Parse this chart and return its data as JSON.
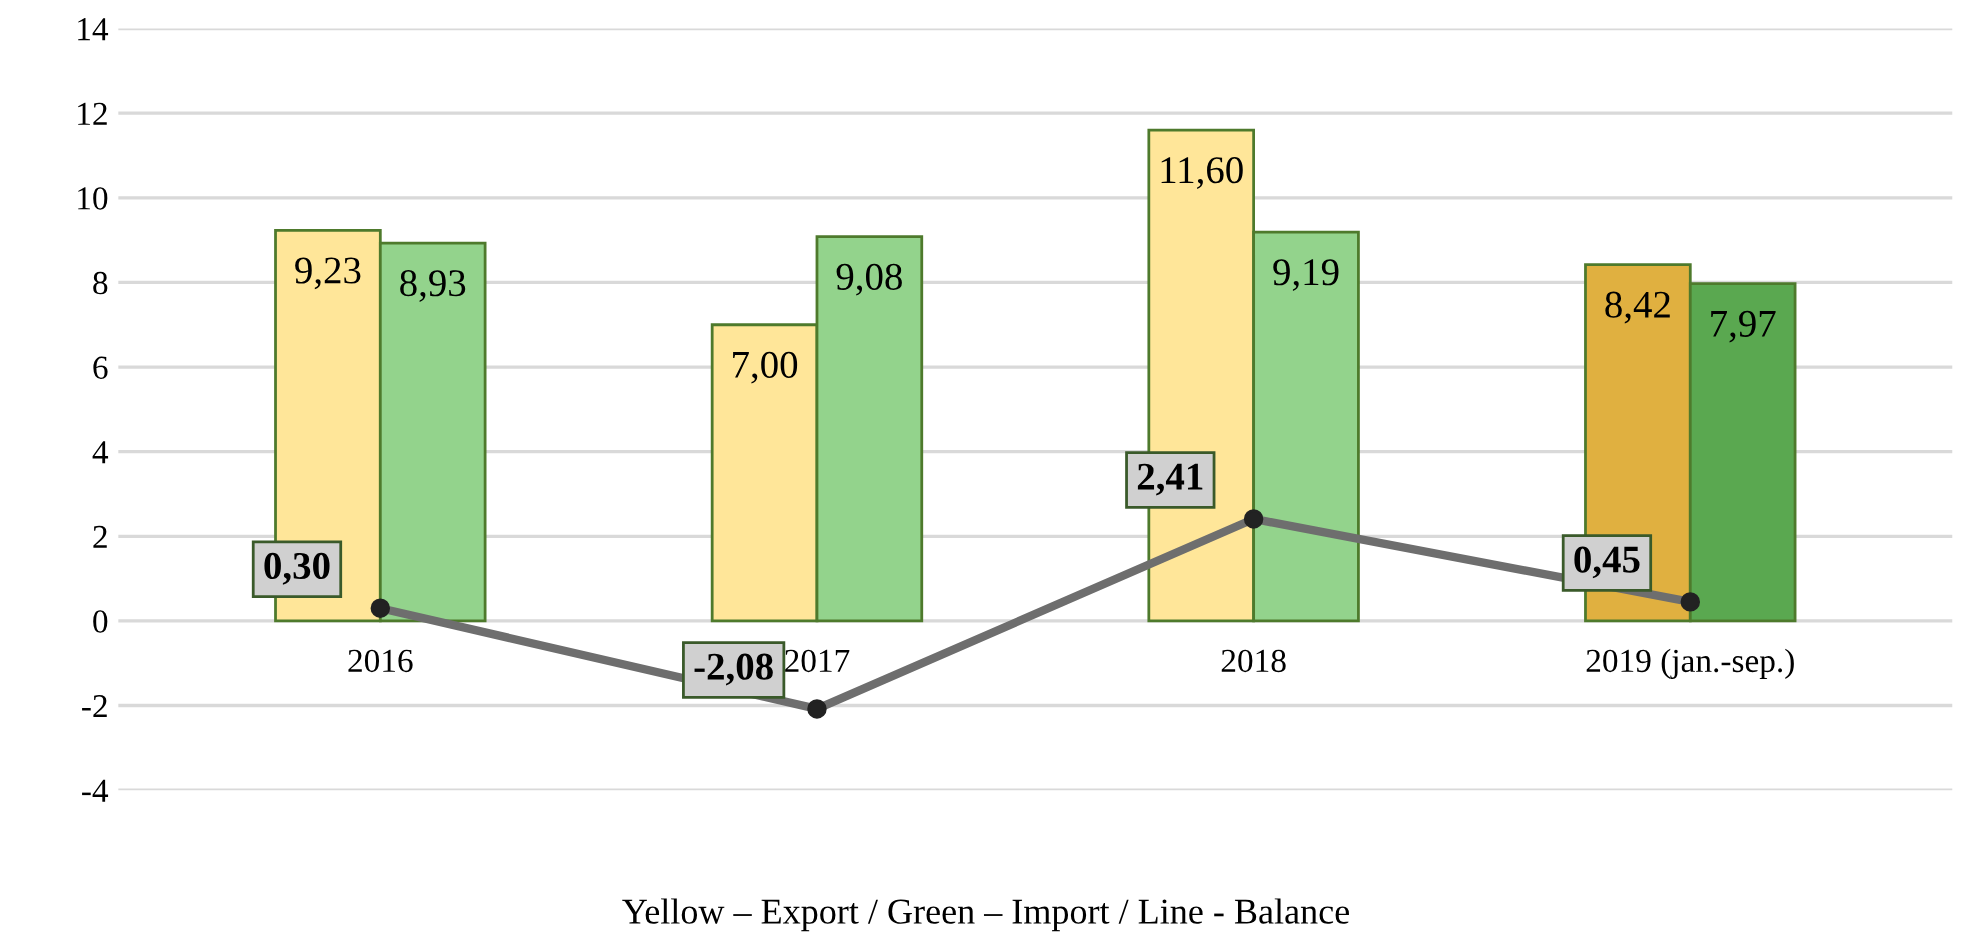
{
  "chart_data": {
    "type": "bar",
    "categories": [
      "2016",
      "2017",
      "2018",
      "2019 (jan.-sep.)"
    ],
    "series": [
      {
        "colors": [
          "#ffe699",
          "#ffe699",
          "#ffe699",
          "#e0b040"
        ],
        "values": [
          9.23,
          7.0,
          11.6,
          8.42
        ],
        "value_labels": [
          "9,23",
          "7,00",
          "11,60",
          "8,42"
        ]
      },
      {
        "colors": [
          "#93d38c",
          "#93d38c",
          "#93d38c",
          "#5aa850"
        ],
        "values": [
          8.93,
          9.08,
          9.19,
          7.97
        ],
        "value_labels": [
          "8,93",
          "9,08",
          "9,19",
          "7,97"
        ]
      },
      {
        "type": "line",
        "color": "#6e6e6e",
        "marker": "circle",
        "values": [
          0.3,
          -2.08,
          2.41,
          0.45
        ],
        "value_labels": [
          "0,30",
          "-2,08",
          "2,41",
          "0,45"
        ]
      }
    ],
    "ylim": [
      -4,
      14
    ],
    "yticks": [
      -4,
      -2,
      0,
      2,
      4,
      6,
      8,
      10,
      12,
      14
    ],
    "grid": "y",
    "legend": false,
    "annotations": [
      "Yellow – Export / Green – Import / Line - Balance"
    ]
  }
}
